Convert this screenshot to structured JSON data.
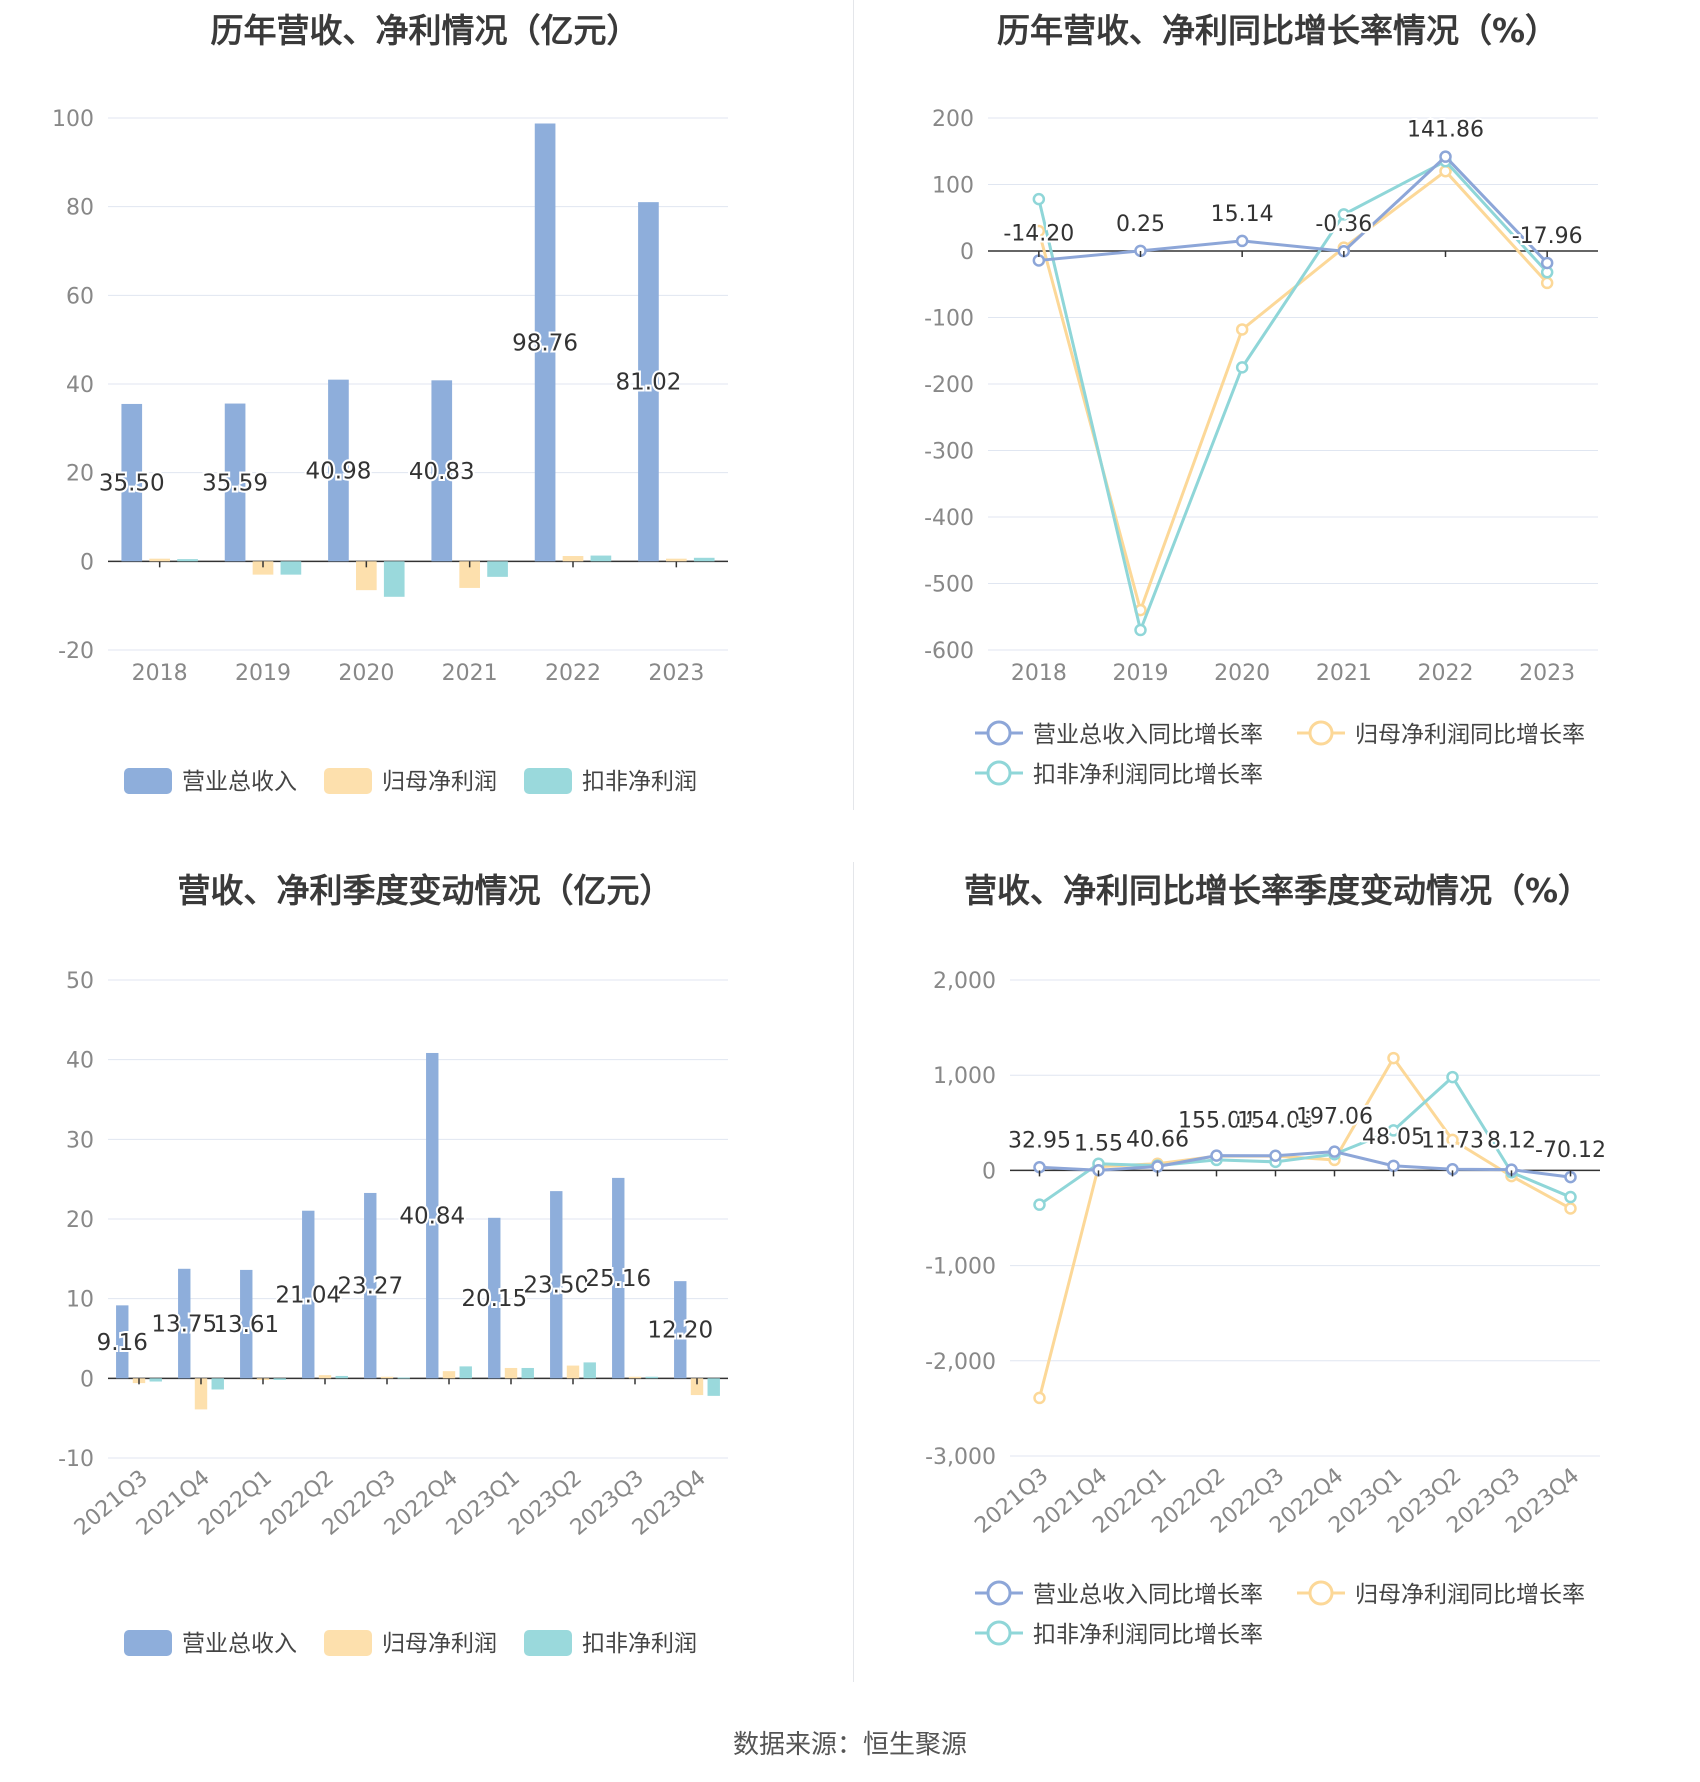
{
  "footer": {
    "source": "数据来源：恒生聚源"
  },
  "colors": {
    "revenue": "#8eaedb",
    "net_profit": "#fde0ad",
    "deducted_profit": "#9ad9dc",
    "line_revenue": "#8da6d8",
    "line_net": "#fcd898",
    "line_deducted": "#8fd6d8",
    "axis": "#333333",
    "grid": "#e0e6f1",
    "tick": "#888888",
    "label": "#333333"
  },
  "chart_data": [
    {
      "id": "annual_values",
      "type": "bar",
      "title": "历年营收、净利情况（亿元）",
      "categories": [
        "2018",
        "2019",
        "2020",
        "2021",
        "2022",
        "2023"
      ],
      "series": [
        {
          "name": "营业总收入",
          "values": [
            35.5,
            35.59,
            40.98,
            40.83,
            98.76,
            81.02
          ],
          "labels": [
            "35.50",
            "35.59",
            "40.98",
            "40.83",
            "98.76",
            "81.02"
          ]
        },
        {
          "name": "归母净利润",
          "values": [
            0.6,
            -3.0,
            -6.5,
            -6.0,
            1.2,
            0.6
          ]
        },
        {
          "name": "扣非净利润",
          "values": [
            0.5,
            -3.0,
            -8.0,
            -3.5,
            1.3,
            0.8
          ]
        }
      ],
      "ylim": [
        -20,
        100
      ],
      "yticks": [
        "-20",
        "0",
        "20",
        "40",
        "60",
        "80",
        "100"
      ],
      "grid": true,
      "legend_position": "bottom"
    },
    {
      "id": "annual_growth",
      "type": "line",
      "title": "历年营收、净利同比增长率情况（%）",
      "categories": [
        "2018",
        "2019",
        "2020",
        "2021",
        "2022",
        "2023"
      ],
      "series": [
        {
          "name": "营业总收入同比增长率",
          "values": [
            -14.2,
            0.25,
            15.14,
            -0.36,
            141.86,
            -17.96
          ],
          "labels": [
            "-14.20",
            "0.25",
            "15.14",
            "-0.36",
            "141.86",
            "-17.96"
          ]
        },
        {
          "name": "归母净利润同比增长率",
          "values": [
            30,
            -540,
            -118,
            5,
            120,
            -48
          ]
        },
        {
          "name": "扣非净利润同比增长率",
          "values": [
            78,
            -570,
            -175,
            55,
            135,
            -32
          ]
        }
      ],
      "ylim": [
        -600,
        200
      ],
      "yticks": [
        "-600",
        "-500",
        "-400",
        "-300",
        "-200",
        "-100",
        "0",
        "100",
        "200"
      ],
      "grid": true,
      "legend_position": "bottom"
    },
    {
      "id": "quarterly_values",
      "type": "bar",
      "title": "营收、净利季度变动情况（亿元）",
      "categories": [
        "2021Q3",
        "2021Q4",
        "2022Q1",
        "2022Q2",
        "2022Q3",
        "2022Q4",
        "2023Q1",
        "2023Q2",
        "2023Q3",
        "2023Q4"
      ],
      "series": [
        {
          "name": "营业总收入",
          "values": [
            9.16,
            13.75,
            13.61,
            21.04,
            23.27,
            40.84,
            20.15,
            23.5,
            25.16,
            12.2
          ],
          "labels": [
            "9.16",
            "13.75",
            "13.61",
            "21.04",
            "23.27",
            "40.84",
            "20.15",
            "23.50",
            "25.16",
            "12.20"
          ]
        },
        {
          "name": "归母净利润",
          "values": [
            -0.6,
            -3.9,
            -0.2,
            0.4,
            0.2,
            0.9,
            1.3,
            1.6,
            0.2,
            -2.1
          ]
        },
        {
          "name": "扣非净利润",
          "values": [
            -0.4,
            -1.4,
            -0.2,
            0.3,
            0.1,
            1.5,
            1.3,
            2.0,
            0.2,
            -2.2
          ]
        }
      ],
      "ylim": [
        -10,
        50
      ],
      "yticks": [
        "-10",
        "0",
        "10",
        "20",
        "30",
        "40",
        "50"
      ],
      "grid": true,
      "legend_position": "bottom"
    },
    {
      "id": "quarterly_growth",
      "type": "line",
      "title": "营收、净利同比增长率季度变动情况（%）",
      "categories": [
        "2021Q3",
        "2021Q4",
        "2022Q1",
        "2022Q2",
        "2022Q3",
        "2022Q4",
        "2023Q1",
        "2023Q2",
        "2023Q3",
        "2023Q4"
      ],
      "series": [
        {
          "name": "营业总收入同比增长率",
          "values": [
            32.95,
            1.55,
            40.66,
            155.04,
            154.06,
            197.06,
            48.05,
            11.73,
            8.12,
            -70.12
          ],
          "labels": [
            "32.95",
            "1.55",
            "40.66",
            "155.04",
            "154.06",
            "197.06",
            "48.05",
            "11.73",
            "8.12",
            "-70.12"
          ]
        },
        {
          "name": "归母净利润同比增长率",
          "values": [
            -2390,
            40,
            70,
            150,
            150,
            110,
            1180,
            320,
            -60,
            -400
          ]
        },
        {
          "name": "扣非净利润同比增长率",
          "values": [
            -360,
            70,
            50,
            110,
            90,
            170,
            420,
            980,
            -20,
            -280
          ]
        }
      ],
      "ylim": [
        -3000,
        2000
      ],
      "yticks": [
        "-3,000",
        "-2,000",
        "-1,000",
        "0",
        "1,000",
        "2,000"
      ],
      "grid": true,
      "legend_position": "bottom"
    }
  ]
}
